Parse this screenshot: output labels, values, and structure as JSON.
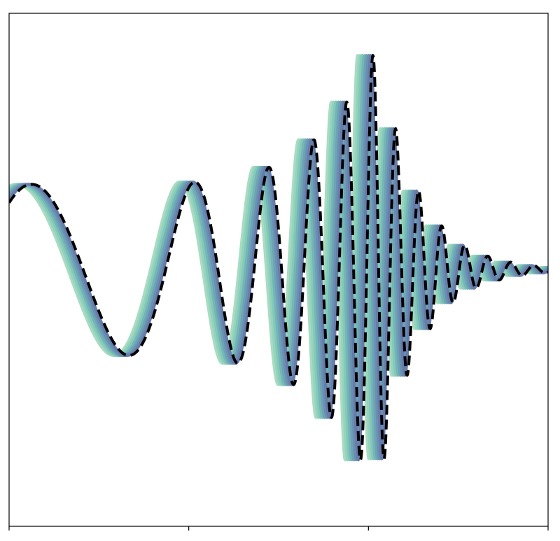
{
  "chart_data": {
    "type": "line",
    "title": "",
    "xlabel": "",
    "ylabel": "",
    "xlim": [
      0,
      3
    ],
    "ylim": [
      -1.2,
      1.2
    ],
    "x_ticks": [
      0,
      1,
      2,
      3
    ],
    "grid": false,
    "legend": "none",
    "waveform": {
      "freq_start": 0.85,
      "freq_end": 7.8,
      "merger_x": 2.05,
      "ringdown_decay": 0.22,
      "base_amplitude": 0.4,
      "peak_amplitude": 1.05
    },
    "series": [
      {
        "shift": -0.085,
        "color": "#a8dcc2",
        "dashed": false
      },
      {
        "shift": -0.072,
        "color": "#95d3bc",
        "dashed": false
      },
      {
        "shift": -0.06,
        "color": "#84c8b9",
        "dashed": false
      },
      {
        "shift": -0.048,
        "color": "#73b6b8",
        "dashed": false
      },
      {
        "shift": -0.036,
        "color": "#6ea2b5",
        "dashed": false
      },
      {
        "shift": -0.024,
        "color": "#6a8fb2",
        "dashed": false
      },
      {
        "shift": -0.012,
        "color": "#667cab",
        "dashed": false
      },
      {
        "shift": 0.0,
        "color": "#000000",
        "dashed": true
      }
    ]
  }
}
